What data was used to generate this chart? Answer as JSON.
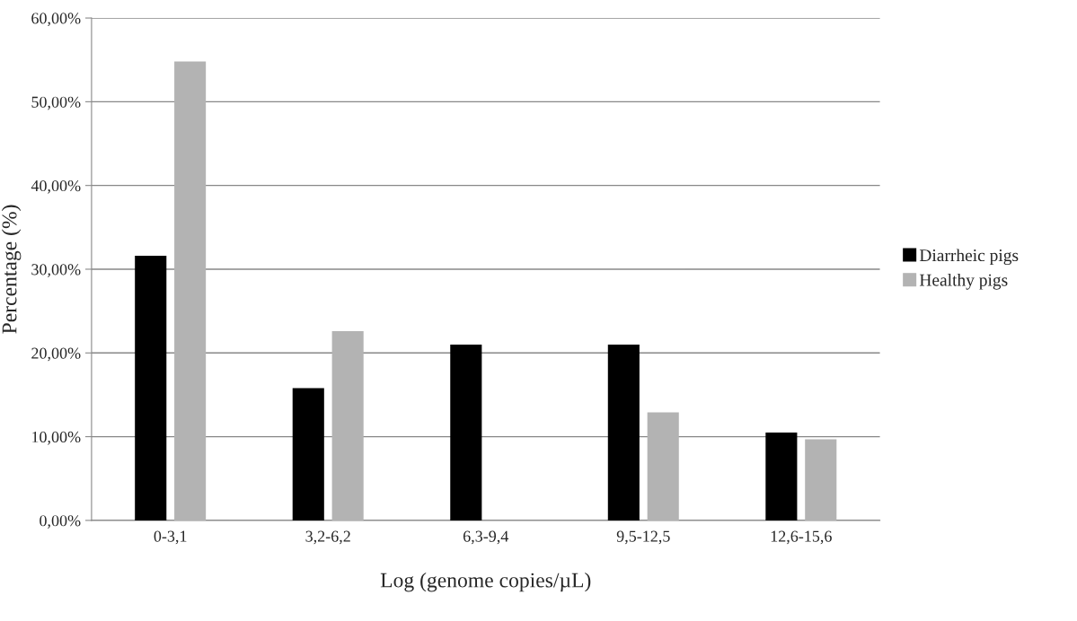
{
  "chart_data": {
    "type": "bar",
    "xlabel": "Log (genome copies/µL)",
    "ylabel": "Percentage (%)",
    "categories": [
      "0-3,1",
      "3,2-6,2",
      "6,3-9,4",
      "9,5-12,5",
      "12,6-15,6"
    ],
    "series": [
      {
        "name": "Diarrheic pigs",
        "color": "#000000",
        "values": [
          31.6,
          15.8,
          21,
          21,
          10.5
        ]
      },
      {
        "name": "Healthy pigs",
        "color": "#b3b3b3",
        "values": [
          54.8,
          22.6,
          null,
          12.9,
          9.7
        ]
      }
    ],
    "ylim": [
      0,
      60
    ],
    "yticks": [
      {
        "value": 0,
        "label": "0,00%"
      },
      {
        "value": 10,
        "label": "10,00%"
      },
      {
        "value": 20,
        "label": "20,00%"
      },
      {
        "value": 30,
        "label": "30,00%"
      },
      {
        "value": 40,
        "label": "40,00%"
      },
      {
        "value": 50,
        "label": "50,00%"
      },
      {
        "value": 60,
        "label": "60,00%"
      }
    ],
    "grid": "y",
    "legend": "right"
  }
}
